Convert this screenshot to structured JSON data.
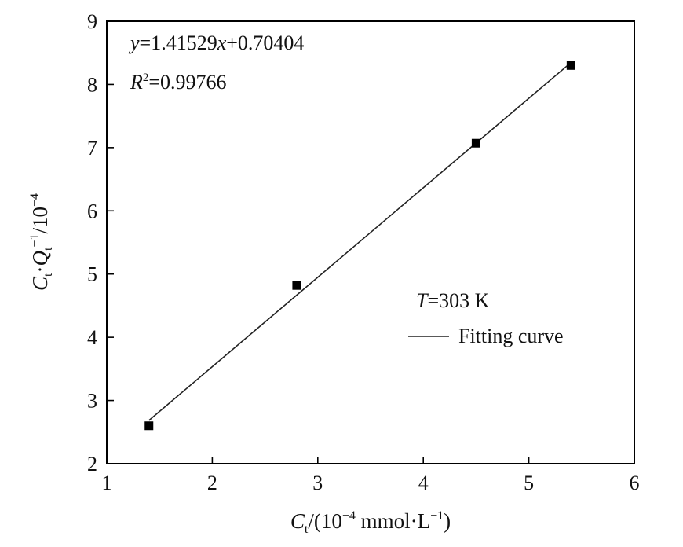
{
  "chart_data": {
    "type": "scatter",
    "x_axis": {
      "label_var": "C",
      "label_sub": "t",
      "label_rest": "/(10",
      "label_exp": "−4",
      "label_unit": " mmol·L",
      "label_unit_exp": "−1",
      "label_close": ")",
      "range": [
        1,
        6
      ],
      "ticks": [
        1,
        2,
        3,
        4,
        5,
        6
      ]
    },
    "y_axis": {
      "label_c": "C",
      "label_c_sub": "t",
      "label_dot": "·",
      "label_q": "Q",
      "label_q_sub": "t",
      "label_q_exp": "−1",
      "label_rest": "/10",
      "label_rest_exp": "−4",
      "range": [
        2,
        9
      ],
      "ticks": [
        2,
        3,
        4,
        5,
        6,
        7,
        8,
        9
      ]
    },
    "series": [
      {
        "name": "T=303 K",
        "marker": "square",
        "points": [
          {
            "x": 1.4,
            "y": 2.6
          },
          {
            "x": 2.8,
            "y": 4.82
          },
          {
            "x": 4.5,
            "y": 7.07
          },
          {
            "x": 5.4,
            "y": 8.3
          }
        ]
      }
    ],
    "fit": {
      "name": "Fitting curve",
      "slope": 1.41529,
      "intercept": 0.70404,
      "x_range": [
        1.4,
        5.4
      ]
    },
    "equation": {
      "y_var": "y",
      "eq_mid": "=1.41529",
      "x_var": "x",
      "eq_end": "+0.70404"
    },
    "r_squared": {
      "var": "R",
      "exp": "2",
      "value": "=0.99766"
    },
    "legend": {
      "t_var": "T",
      "t_value": "=303 K",
      "line_label": "Fitting curve",
      "position": "right-middle"
    },
    "grid": false,
    "colors": {
      "marker": "#000000",
      "line": "#222222"
    }
  }
}
